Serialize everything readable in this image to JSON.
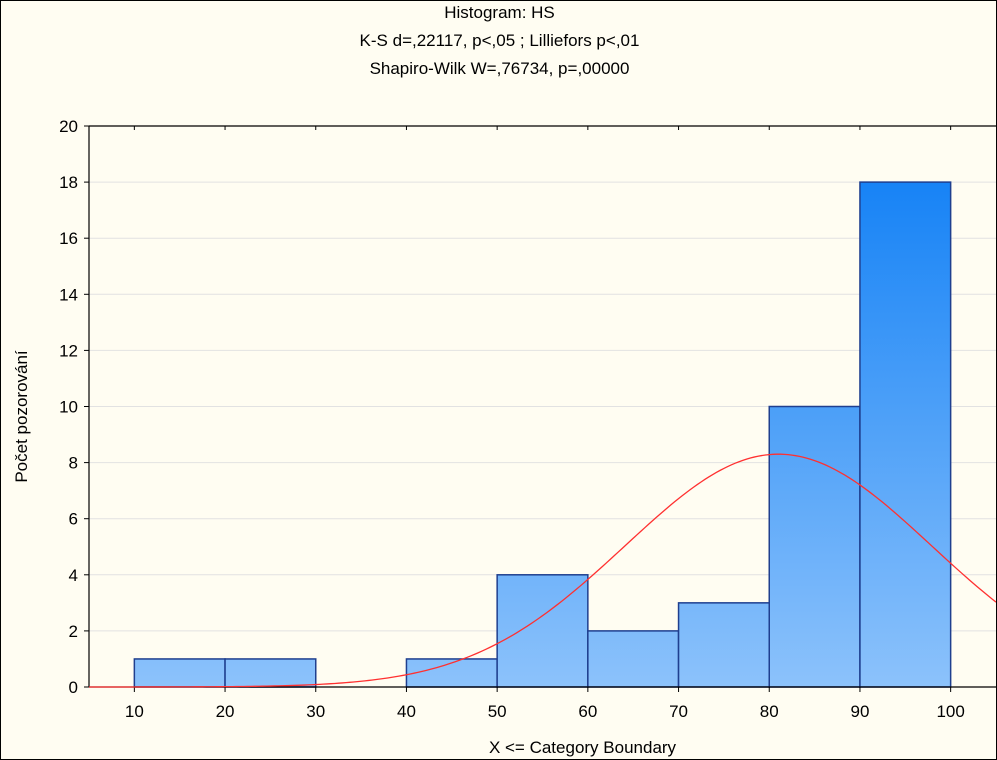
{
  "chart_data": {
    "type": "bar",
    "title": "Histogram: HS",
    "subtitle": "K-S d=,22117, p<,05 ; Lilliefors p<,01",
    "subtitle2": "Shapiro-Wilk W=,76734, p=,00000",
    "xlabel": "X <= Category Boundary",
    "ylabel": "Počet pozorování",
    "bins": [
      {
        "from": 10,
        "to": 20,
        "count": 1
      },
      {
        "from": 20,
        "to": 30,
        "count": 1
      },
      {
        "from": 30,
        "to": 40,
        "count": 0
      },
      {
        "from": 40,
        "to": 50,
        "count": 1
      },
      {
        "from": 50,
        "to": 60,
        "count": 4
      },
      {
        "from": 60,
        "to": 70,
        "count": 2
      },
      {
        "from": 70,
        "to": 80,
        "count": 3
      },
      {
        "from": 80,
        "to": 90,
        "count": 10
      },
      {
        "from": 90,
        "to": 100,
        "count": 18
      }
    ],
    "x_ticks": [
      10,
      20,
      30,
      40,
      50,
      60,
      70,
      80,
      90,
      100
    ],
    "y_ticks": [
      0,
      2,
      4,
      6,
      8,
      10,
      12,
      14,
      16,
      18,
      20
    ],
    "xlim": [
      5,
      105
    ],
    "ylim": [
      0,
      20
    ],
    "normal_curve": {
      "mean": 81,
      "sd": 16.9,
      "peak": 8.3
    },
    "grid": "horizontal",
    "colors": {
      "background": "#fffdf2",
      "bar_top": "#0a7cf5",
      "bar_bottom": "#8cc2fb",
      "bar_edge": "#1f3f8f",
      "curve": "#ff3030",
      "grid": "#e2e2e2"
    }
  }
}
